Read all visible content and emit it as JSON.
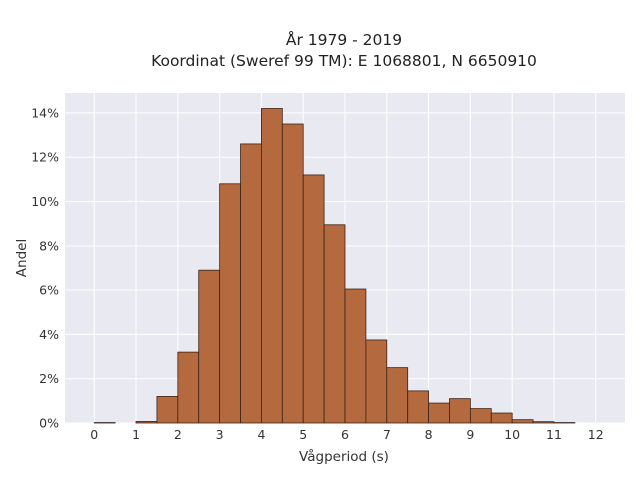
{
  "chart_data": {
    "type": "bar",
    "title": "År 1979 - 2019",
    "subtitle": "Koordinat (Sweref 99 TM): E 1068801, N 6650910",
    "xlabel": "Vågperiod (s)",
    "ylabel": "Andel",
    "xlim": [
      -0.7,
      12.7
    ],
    "ylim": [
      0,
      14.9
    ],
    "x_ticks": [
      0,
      1,
      2,
      3,
      4,
      5,
      6,
      7,
      8,
      9,
      10,
      11,
      12
    ],
    "y_ticks": [
      0,
      2,
      4,
      6,
      8,
      10,
      12,
      14
    ],
    "y_tick_labels": [
      "0%",
      "2%",
      "4%",
      "6%",
      "8%",
      "10%",
      "12%",
      "14%"
    ],
    "bin_width": 0.5,
    "bins": [
      {
        "x0": 0.0,
        "value": 0.02
      },
      {
        "x0": 1.0,
        "value": 0.07
      },
      {
        "x0": 1.5,
        "value": 1.2
      },
      {
        "x0": 2.0,
        "value": 3.2
      },
      {
        "x0": 2.5,
        "value": 6.9
      },
      {
        "x0": 3.0,
        "value": 10.8
      },
      {
        "x0": 3.5,
        "value": 12.6
      },
      {
        "x0": 4.0,
        "value": 14.2
      },
      {
        "x0": 4.5,
        "value": 13.5
      },
      {
        "x0": 5.0,
        "value": 11.2
      },
      {
        "x0": 5.5,
        "value": 8.95
      },
      {
        "x0": 6.0,
        "value": 6.05
      },
      {
        "x0": 6.5,
        "value": 3.75
      },
      {
        "x0": 7.0,
        "value": 2.5
      },
      {
        "x0": 7.5,
        "value": 1.45
      },
      {
        "x0": 8.0,
        "value": 0.9
      },
      {
        "x0": 8.5,
        "value": 1.1
      },
      {
        "x0": 9.0,
        "value": 0.65
      },
      {
        "x0": 9.5,
        "value": 0.45
      },
      {
        "x0": 10.0,
        "value": 0.15
      },
      {
        "x0": 10.5,
        "value": 0.06
      },
      {
        "x0": 11.0,
        "value": 0.02
      }
    ],
    "grid": true,
    "colors": {
      "bar_fill": "#b5693f",
      "bar_edge": "#3a2418",
      "plot_background": "#e9e9f1",
      "grid": "#ffffff"
    }
  }
}
